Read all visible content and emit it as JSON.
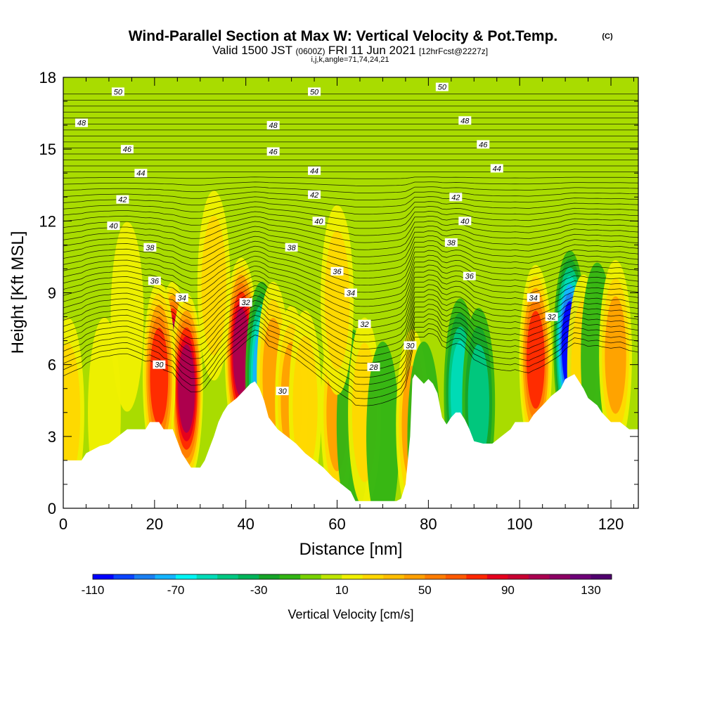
{
  "chart_data": {
    "type": "heatmap",
    "title": "Wind-Parallel Section at Max W: Vertical Velocity & Pot.Temp.",
    "copyright_mark": "(C)",
    "subtitle": {
      "valid_prefix": "Valid 1500 JST",
      "utc_time": "(0600Z)",
      "date": "FRI 11 Jun 2021",
      "forecast_info": "[12hrFcst@2227z]"
    },
    "section_info": "i,j,k,angle=71,74,24,21",
    "xlabel": "Distance [nm]",
    "ylabel": "Height [Kft MSL]",
    "xlim": [
      0,
      126
    ],
    "ylim": [
      0,
      18
    ],
    "x_ticks": [
      "0",
      "20",
      "40",
      "60",
      "80",
      "100",
      "120"
    ],
    "y_ticks": [
      "0",
      "3",
      "6",
      "9",
      "12",
      "15",
      "18"
    ],
    "colorbar": {
      "label": "Vertical Velocity [cm/s]",
      "range": [
        -110,
        140
      ],
      "step": 10,
      "tick_labels": [
        "-110",
        "-70",
        "-30",
        "10",
        "50",
        "90",
        "130"
      ],
      "colors": [
        "#0000ff",
        "#0a44ff",
        "#1a7ff2",
        "#14b4ff",
        "#00f5f5",
        "#00dcb8",
        "#00c882",
        "#00b45a",
        "#16a428",
        "#32b414",
        "#78d200",
        "#bee600",
        "#f0f000",
        "#ffd700",
        "#ffbe00",
        "#ffa000",
        "#ff7d00",
        "#ff5a00",
        "#ff2800",
        "#e6001e",
        "#c80032",
        "#aa0050",
        "#8c0064",
        "#6e0078",
        "#50006e"
      ]
    },
    "contour_field": "potential temperature",
    "contour_labels": [
      {
        "text": "50",
        "x": 12,
        "y": 17.4
      },
      {
        "text": "50",
        "x": 55,
        "y": 17.4
      },
      {
        "text": "50",
        "x": 83,
        "y": 17.6
      },
      {
        "text": "48",
        "x": 4,
        "y": 16.1
      },
      {
        "text": "48",
        "x": 46,
        "y": 16.0
      },
      {
        "text": "48",
        "x": 88,
        "y": 16.2
      },
      {
        "text": "46",
        "x": 14,
        "y": 15.0
      },
      {
        "text": "46",
        "x": 46,
        "y": 14.9
      },
      {
        "text": "46",
        "x": 92,
        "y": 15.2
      },
      {
        "text": "44",
        "x": 17,
        "y": 14.0
      },
      {
        "text": "44",
        "x": 55,
        "y": 14.1
      },
      {
        "text": "44",
        "x": 95,
        "y": 14.2
      },
      {
        "text": "42",
        "x": 13,
        "y": 12.9
      },
      {
        "text": "42",
        "x": 55,
        "y": 13.1
      },
      {
        "text": "42",
        "x": 86,
        "y": 13.0
      },
      {
        "text": "40",
        "x": 11,
        "y": 11.8
      },
      {
        "text": "40",
        "x": 56,
        "y": 12.0
      },
      {
        "text": "40",
        "x": 88,
        "y": 12.0
      },
      {
        "text": "38",
        "x": 19,
        "y": 10.9
      },
      {
        "text": "38",
        "x": 50,
        "y": 10.9
      },
      {
        "text": "38",
        "x": 85,
        "y": 11.1
      },
      {
        "text": "36",
        "x": 20,
        "y": 9.5
      },
      {
        "text": "36",
        "x": 60,
        "y": 9.9
      },
      {
        "text": "36",
        "x": 89,
        "y": 9.7
      },
      {
        "text": "34",
        "x": 26,
        "y": 8.8
      },
      {
        "text": "34",
        "x": 63,
        "y": 9.0
      },
      {
        "text": "34",
        "x": 103,
        "y": 8.8
      },
      {
        "text": "32",
        "x": 40,
        "y": 8.6
      },
      {
        "text": "32",
        "x": 66,
        "y": 7.7
      },
      {
        "text": "32",
        "x": 107,
        "y": 8.0
      },
      {
        "text": "30",
        "x": 21,
        "y": 6.0
      },
      {
        "text": "30",
        "x": 48,
        "y": 4.9
      },
      {
        "text": "30",
        "x": 76,
        "y": 6.8
      },
      {
        "text": "28",
        "x": 68,
        "y": 5.9
      }
    ],
    "terrain_nm_kft": [
      [
        0,
        2
      ],
      [
        4,
        2
      ],
      [
        5,
        2.3
      ],
      [
        8,
        2.6
      ],
      [
        10,
        2.7
      ],
      [
        12,
        3
      ],
      [
        14,
        3.3
      ],
      [
        16,
        3.3
      ],
      [
        18,
        3.3
      ],
      [
        19,
        3.6
      ],
      [
        21,
        3.6
      ],
      [
        22,
        3.3
      ],
      [
        24,
        3.3
      ],
      [
        25,
        2.8
      ],
      [
        26,
        2.3
      ],
      [
        27,
        2
      ],
      [
        28,
        1.7
      ],
      [
        30,
        1.7
      ],
      [
        31,
        2
      ],
      [
        32,
        2.5
      ],
      [
        33,
        3
      ],
      [
        34,
        3.6
      ],
      [
        35,
        4
      ],
      [
        36,
        4.3
      ],
      [
        38,
        4.6
      ],
      [
        40,
        5
      ],
      [
        41,
        5.2
      ],
      [
        42,
        5.3
      ],
      [
        43,
        5
      ],
      [
        44,
        4.5
      ],
      [
        45,
        3.8
      ],
      [
        47,
        3.3
      ],
      [
        49,
        3
      ],
      [
        51,
        2.7
      ],
      [
        53,
        2.3
      ],
      [
        55,
        2
      ],
      [
        57,
        1.7
      ],
      [
        59,
        1.3
      ],
      [
        61,
        1
      ],
      [
        63,
        0.7
      ],
      [
        64,
        0.3
      ],
      [
        66,
        0.3
      ],
      [
        70,
        0.3
      ],
      [
        73,
        0.3
      ],
      [
        74,
        0.4
      ],
      [
        75,
        1
      ],
      [
        76,
        3
      ],
      [
        76.5,
        5.4
      ],
      [
        77,
        5.6
      ],
      [
        78,
        5.4
      ],
      [
        79,
        5.2
      ],
      [
        80,
        5.4
      ],
      [
        81,
        5.2
      ],
      [
        82,
        4.8
      ],
      [
        83,
        3.8
      ],
      [
        84,
        3.5
      ],
      [
        85,
        3.8
      ],
      [
        86,
        4
      ],
      [
        87,
        4
      ],
      [
        88,
        3.7
      ],
      [
        89,
        3.3
      ],
      [
        90,
        2.8
      ],
      [
        92,
        2.7
      ],
      [
        94,
        2.7
      ],
      [
        96,
        3
      ],
      [
        98,
        3.3
      ],
      [
        99,
        3.6
      ],
      [
        102,
        3.6
      ],
      [
        103,
        3.9
      ],
      [
        105,
        4.3
      ],
      [
        107,
        4.7
      ],
      [
        109,
        5
      ],
      [
        110,
        5.4
      ],
      [
        112,
        5.6
      ],
      [
        114,
        5
      ],
      [
        115,
        4.6
      ],
      [
        117,
        4.3
      ],
      [
        118,
        4
      ],
      [
        120,
        3.6
      ],
      [
        122,
        3.6
      ],
      [
        124,
        3.3
      ],
      [
        126,
        3.3
      ]
    ],
    "w_cells_cm_s": [
      {
        "x": 24,
        "y": 5.5,
        "w": 135
      },
      {
        "x": 27,
        "y": 5.0,
        "w": 110
      },
      {
        "x": 21,
        "y": 5.5,
        "w": 70
      },
      {
        "x": 39,
        "y": 6.5,
        "w": 100
      },
      {
        "x": 43.5,
        "y": 5.5,
        "w": -70
      },
      {
        "x": 46,
        "y": 5.5,
        "w": 40
      },
      {
        "x": 50,
        "y": 4.5,
        "w": 50
      },
      {
        "x": 53,
        "y": 4.3,
        "w": 30
      },
      {
        "x": 60,
        "y": 4.0,
        "w": 40
      },
      {
        "x": 63.5,
        "y": 3.5,
        "w": -10
      },
      {
        "x": 66,
        "y": 4.0,
        "w": 30
      },
      {
        "x": 70,
        "y": 3.0,
        "w": -20
      },
      {
        "x": 76.5,
        "y": 3.5,
        "w": 40
      },
      {
        "x": 79,
        "y": 3.0,
        "w": -10
      },
      {
        "x": 87,
        "y": 4.8,
        "w": -60
      },
      {
        "x": 91,
        "y": 4.4,
        "w": -50
      },
      {
        "x": 103.5,
        "y": 6.2,
        "w": 80
      },
      {
        "x": 111,
        "y": 6.8,
        "w": -110
      },
      {
        "x": 114,
        "y": 5.8,
        "w": 30
      },
      {
        "x": 117,
        "y": 6.3,
        "w": -20
      },
      {
        "x": 121,
        "y": 6.4,
        "w": 50
      },
      {
        "x": 1,
        "y": 4.0,
        "w": 30
      },
      {
        "x": 9,
        "y": 4.0,
        "w": 15
      },
      {
        "x": 60,
        "y": 8.7,
        "w": 30
      },
      {
        "x": 14,
        "y": 8.0,
        "w": 20
      },
      {
        "x": 33,
        "y": 9.3,
        "w": 30
      }
    ]
  }
}
